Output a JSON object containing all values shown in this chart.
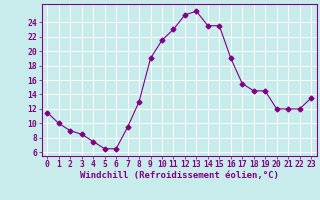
{
  "x": [
    0,
    1,
    2,
    3,
    4,
    5,
    6,
    7,
    8,
    9,
    10,
    11,
    12,
    13,
    14,
    15,
    16,
    17,
    18,
    19,
    20,
    21,
    22,
    23
  ],
  "y": [
    11.5,
    10.0,
    9.0,
    8.5,
    7.5,
    6.5,
    6.5,
    9.5,
    13.0,
    19.0,
    21.5,
    23.0,
    25.0,
    25.5,
    23.5,
    23.5,
    19.0,
    15.5,
    14.5,
    14.5,
    12.0,
    12.0,
    12.0,
    13.5
  ],
  "line_color": "#800080",
  "marker": "D",
  "marker_size": 2.5,
  "bg_color": "#c8ecec",
  "grid_color": "#ffffff",
  "xlabel": "Windchill (Refroidissement éolien,°C)",
  "xlabel_fontsize": 6.5,
  "tick_fontsize": 5.8,
  "ylim": [
    5.5,
    26.5
  ],
  "yticks": [
    6,
    8,
    10,
    12,
    14,
    16,
    18,
    20,
    22,
    24
  ],
  "xticks": [
    0,
    1,
    2,
    3,
    4,
    5,
    6,
    7,
    8,
    9,
    10,
    11,
    12,
    13,
    14,
    15,
    16,
    17,
    18,
    19,
    20,
    21,
    22,
    23
  ],
  "xlim": [
    -0.5,
    23.5
  ]
}
